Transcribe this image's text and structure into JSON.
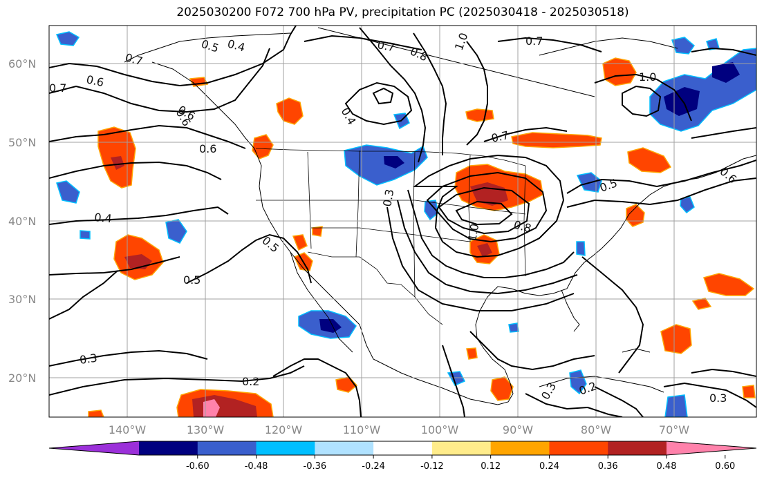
{
  "title": "2025030200 F072 700 hPa PV, precipitation PC (2025030418 - 2025030518)",
  "lat_labels": [
    "60°N",
    "50°N",
    "40°N",
    "30°N",
    "20°N"
  ],
  "lon_labels": [
    "140°W",
    "130°W",
    "120°W",
    "110°W",
    "100°W",
    "90°W",
    "80°W",
    "70°W"
  ],
  "colorbar": {
    "colors": [
      "#9b30d9",
      "#00007f",
      "#3a5fcd",
      "#00bfff",
      "#b0e2ff",
      "#ffffff",
      "#ffec8b",
      "#ffa500",
      "#ff4500",
      "#b22222",
      "#ff82ab"
    ],
    "tick_labels": [
      "-0.60",
      "-0.48",
      "-0.36",
      "-0.24",
      "-0.12",
      "0.12",
      "0.24",
      "0.36",
      "0.48",
      "0.60"
    ]
  },
  "contour_labels": [
    "0.5",
    "0.4",
    "0.7",
    "0.8",
    "1.0",
    "0.7",
    "0.7",
    "0.6",
    "1.0",
    "0.7",
    "0.6",
    "0.6",
    "0.4",
    "0.7",
    "0.5",
    "0.6",
    "0.3",
    "0.4",
    "0.5",
    "0.5",
    "1.0",
    "0.8",
    "0.3",
    "0.2",
    "0.3",
    "0.2",
    "0.3",
    "0.6"
  ]
}
